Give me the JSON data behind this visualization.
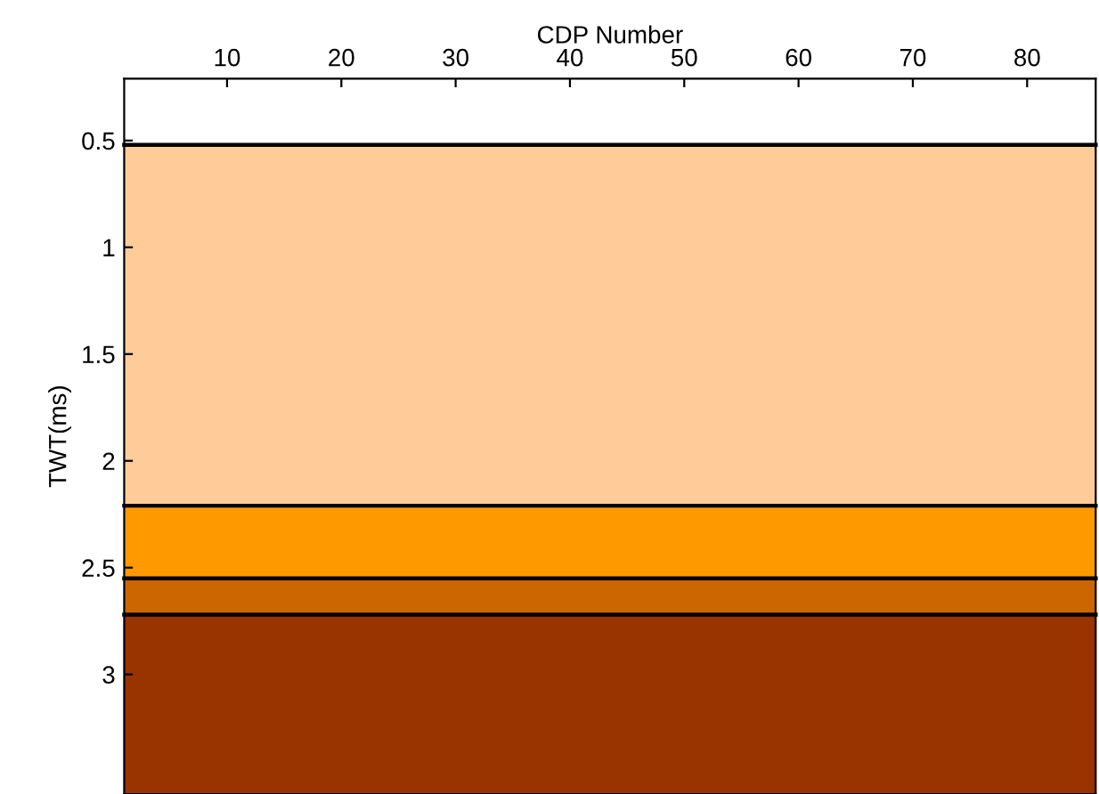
{
  "chart_data": {
    "type": "line",
    "xlabel": "CDP Number",
    "ylabel": "TWT(ms)",
    "x": [
      1,
      86
    ],
    "series": [
      {
        "color": "#000000",
        "values": [
          0.52,
          0.52
        ]
      },
      {
        "color": "#000000",
        "values": [
          2.21,
          2.21
        ]
      },
      {
        "color": "#000000",
        "values": [
          2.55,
          2.55
        ]
      },
      {
        "color": "#000000",
        "values": [
          2.72,
          2.72
        ]
      }
    ],
    "bands": [
      {
        "axis": "y",
        "from": 0.52,
        "to": 2.21,
        "color": "#ffcc99"
      },
      {
        "axis": "y",
        "from": 2.21,
        "to": 2.55,
        "color": "#ff9900"
      },
      {
        "axis": "y",
        "from": 2.55,
        "to": 2.72,
        "color": "#cc6600"
      },
      {
        "axis": "y",
        "from": 2.72,
        "to": 3.56,
        "color": "#993300"
      }
    ],
    "xlim": [
      1,
      86
    ],
    "ylim": [
      3.56,
      0.21
    ],
    "xticks": [
      10,
      20,
      30,
      40,
      50,
      60,
      70,
      80
    ],
    "yticks": [
      0.5,
      1,
      1.5,
      2,
      2.5,
      3
    ],
    "line_style": "solid",
    "grid": false,
    "legend": false
  }
}
